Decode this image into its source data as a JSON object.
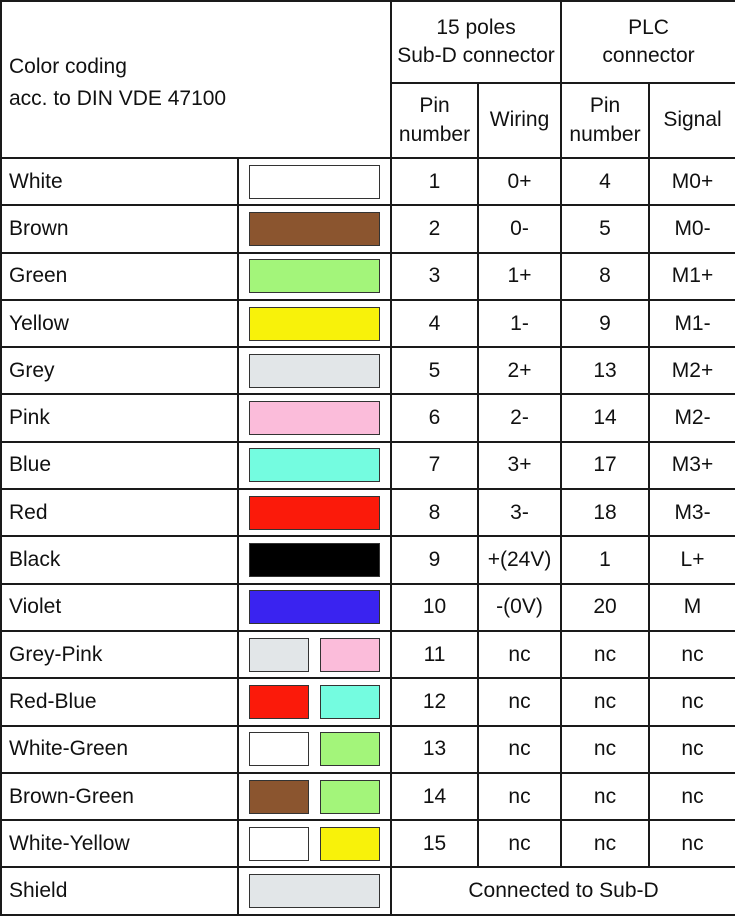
{
  "header": {
    "color_coding": "Color coding",
    "standard": "acc. to DIN VDE 47100",
    "subd_title_1": "15 poles",
    "subd_title_2": "Sub-D connector",
    "plc_title_1": "PLC",
    "plc_title_2": "connector",
    "pin_number_1": "Pin",
    "pin_number_2": "number",
    "wiring": "Wiring",
    "signal": "Signal"
  },
  "rows": [
    {
      "name": "White",
      "colors": [
        "#FFFFFF"
      ],
      "pin": "1",
      "wiring": "0+",
      "plc_pin": "4",
      "signal": "M0+"
    },
    {
      "name": "Brown",
      "colors": [
        "#8B552F"
      ],
      "pin": "2",
      "wiring": "0-",
      "plc_pin": "5",
      "signal": "M0-"
    },
    {
      "name": "Green",
      "colors": [
        "#A3F57A"
      ],
      "pin": "3",
      "wiring": "1+",
      "plc_pin": "8",
      "signal": "M1+"
    },
    {
      "name": "Yellow",
      "colors": [
        "#F8F20A"
      ],
      "pin": "4",
      "wiring": "1-",
      "plc_pin": "9",
      "signal": "M1-"
    },
    {
      "name": "Grey",
      "colors": [
        "#E2E6E8"
      ],
      "pin": "5",
      "wiring": "2+",
      "plc_pin": "13",
      "signal": "M2+"
    },
    {
      "name": "Pink",
      "colors": [
        "#FBBCDA"
      ],
      "pin": "6",
      "wiring": "2-",
      "plc_pin": "14",
      "signal": "M2-"
    },
    {
      "name": "Blue",
      "colors": [
        "#74FCE0"
      ],
      "pin": "7",
      "wiring": "3+",
      "plc_pin": "17",
      "signal": "M3+"
    },
    {
      "name": "Red",
      "colors": [
        "#FB1A0A"
      ],
      "pin": "8",
      "wiring": "3-",
      "plc_pin": "18",
      "signal": "M3-"
    },
    {
      "name": "Black",
      "colors": [
        "#000000"
      ],
      "pin": "9",
      "wiring": "+(24V)",
      "plc_pin": "1",
      "signal": "L+"
    },
    {
      "name": "Violet",
      "colors": [
        "#3A23F0"
      ],
      "pin": "10",
      "wiring": "-(0V)",
      "plc_pin": "20",
      "signal": "M"
    },
    {
      "name": "Grey-Pink",
      "colors": [
        "#E2E6E8",
        "#FBBCDA"
      ],
      "pin": "11",
      "wiring": "nc",
      "plc_pin": "nc",
      "signal": "nc"
    },
    {
      "name": "Red-Blue",
      "colors": [
        "#FB1A0A",
        "#74FCE0"
      ],
      "pin": "12",
      "wiring": "nc",
      "plc_pin": "nc",
      "signal": "nc"
    },
    {
      "name": "White-Green",
      "colors": [
        "#FFFFFF",
        "#A3F57A"
      ],
      "pin": "13",
      "wiring": "nc",
      "plc_pin": "nc",
      "signal": "nc"
    },
    {
      "name": "Brown-Green",
      "colors": [
        "#8B552F",
        "#A3F57A"
      ],
      "pin": "14",
      "wiring": "nc",
      "plc_pin": "nc",
      "signal": "nc"
    },
    {
      "name": "White-Yellow",
      "colors": [
        "#FFFFFF",
        "#F8F20A"
      ],
      "pin": "15",
      "wiring": "nc",
      "plc_pin": "nc",
      "signal": "nc"
    }
  ],
  "shield": {
    "name": "Shield",
    "colors": [
      "#E2E6E8"
    ],
    "note": "Connected to Sub-D"
  }
}
